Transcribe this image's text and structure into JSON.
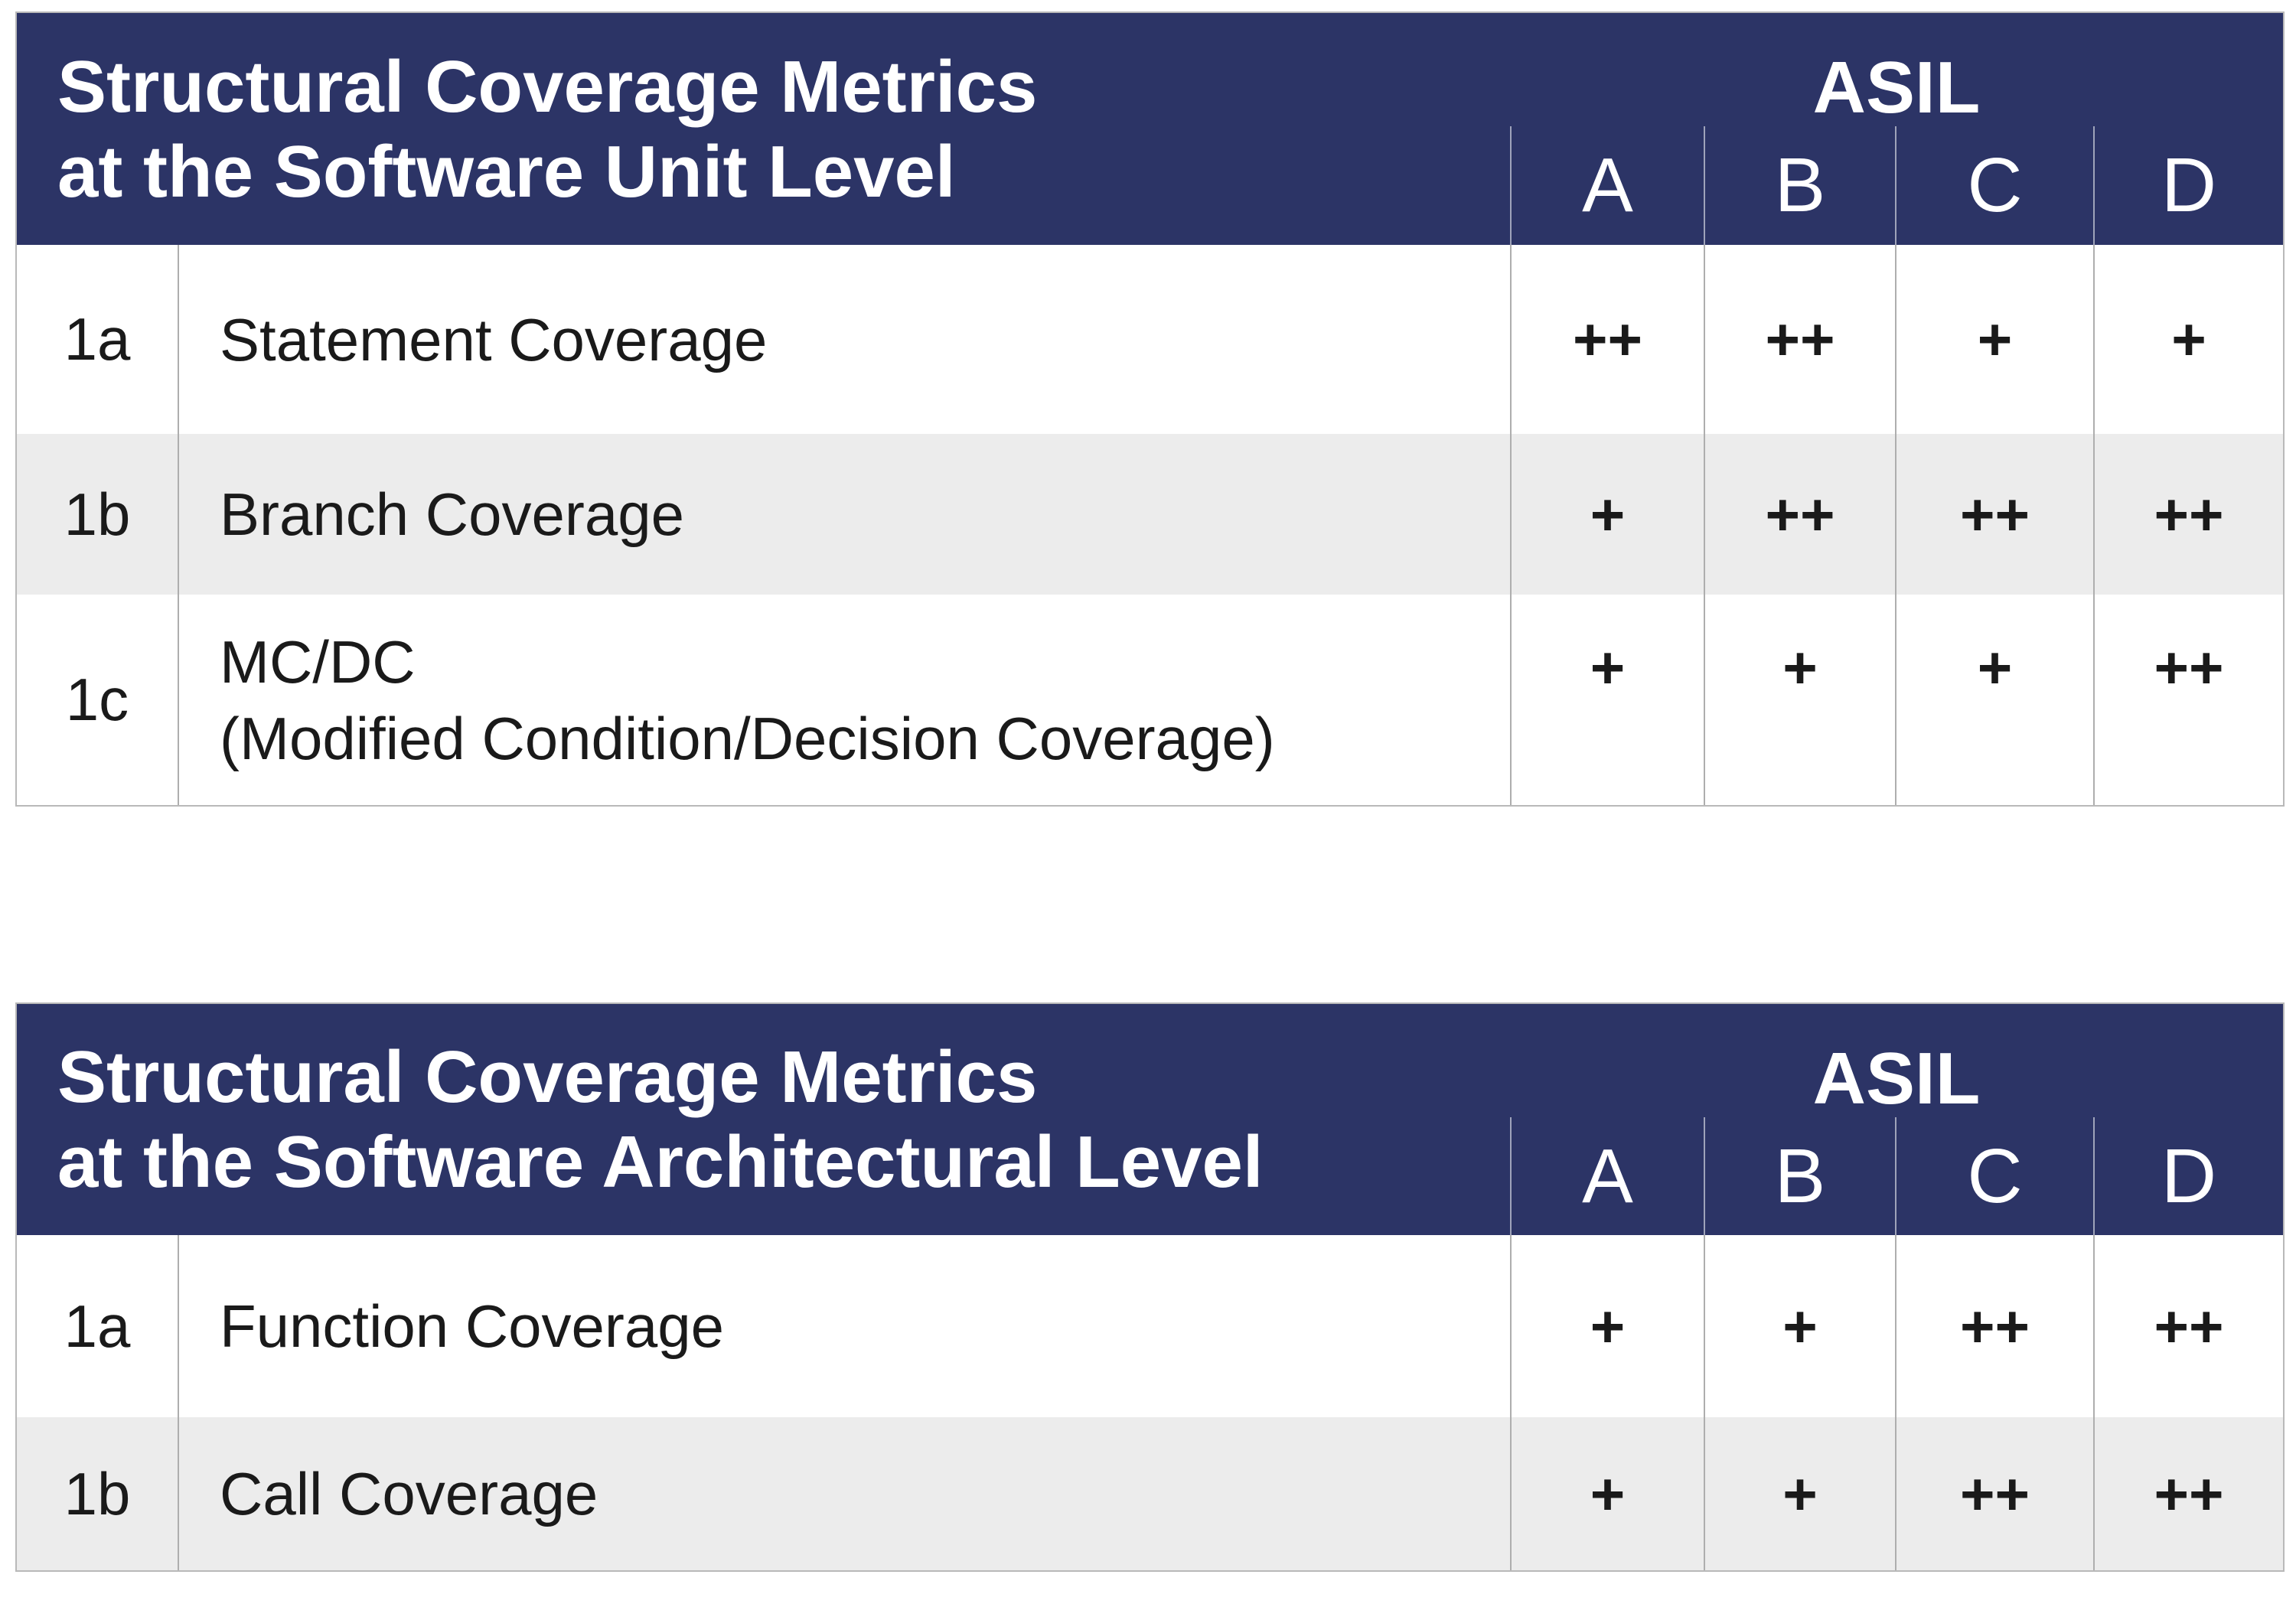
{
  "colors": {
    "header_bg": "#2c3466",
    "header_text": "#ffffff",
    "body_text": "#1a1a1a",
    "row_alt_bg": "#ececec",
    "grid_line": "#aeaeae"
  },
  "asil": {
    "group_label": "ASIL",
    "levels": [
      "A",
      "B",
      "C",
      "D"
    ]
  },
  "tables": [
    {
      "title_line1": "Structural Coverage Metrics",
      "title_line2": "at the Software Unit Level",
      "rows": [
        {
          "id": "1a",
          "metric": "Statement Coverage",
          "values": [
            "++",
            "++",
            "+",
            "+"
          ]
        },
        {
          "id": "1b",
          "metric": "Branch Coverage",
          "values": [
            "+",
            "++",
            "++",
            "++"
          ]
        },
        {
          "id": "1c",
          "metric": "MC/DC",
          "metric_line2": "(Modified Condition/Decision Coverage)",
          "values": [
            "+",
            "+",
            "+",
            "++"
          ]
        }
      ]
    },
    {
      "title_line1": "Structural Coverage Metrics",
      "title_line2": "at the Software Architectural Level",
      "rows": [
        {
          "id": "1a",
          "metric": "Function Coverage",
          "values": [
            "+",
            "+",
            "++",
            "++"
          ]
        },
        {
          "id": "1b",
          "metric": "Call Coverage",
          "values": [
            "+",
            "+",
            "++",
            "++"
          ]
        }
      ]
    }
  ]
}
